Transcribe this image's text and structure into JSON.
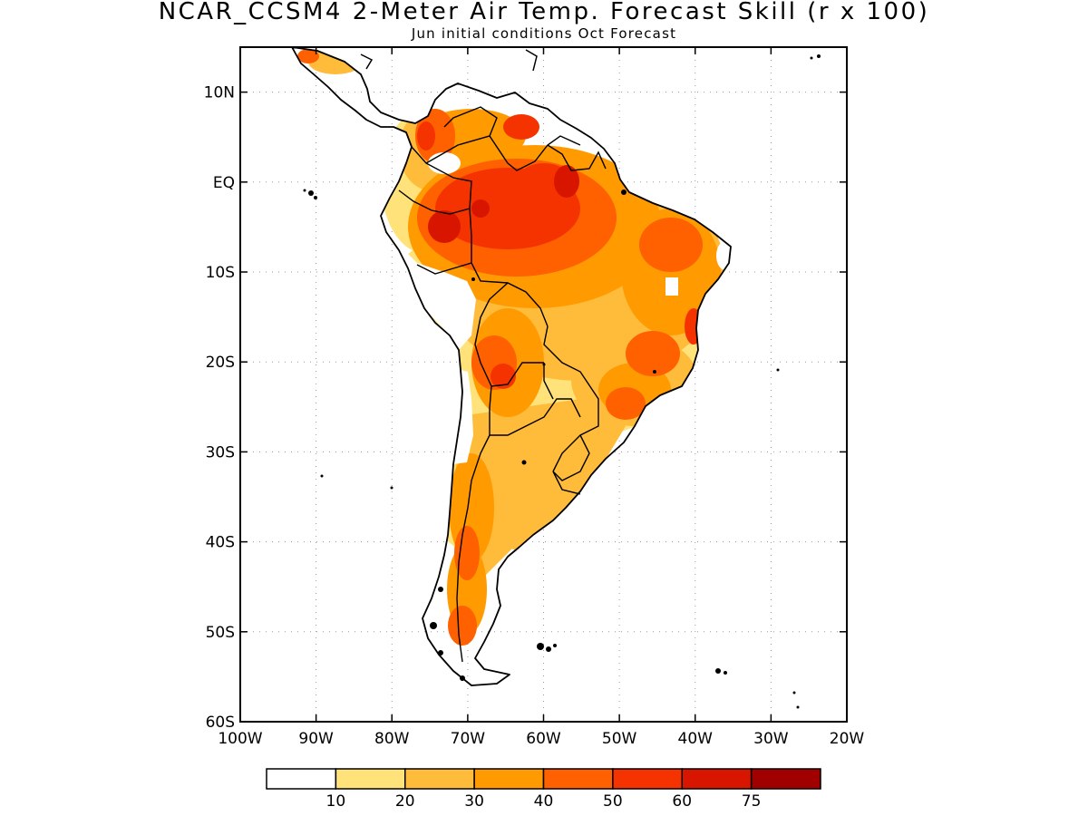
{
  "header": {
    "title": "NCAR_CCSM4 2-Meter Air Temp. Forecast Skill (r x 100)",
    "subtitle": "Jun initial conditions  Oct Forecast"
  },
  "map": {
    "region": "South America",
    "lon_range": [
      -100,
      -20
    ],
    "lat_range": [
      -60,
      15
    ],
    "lat_labels": [
      {
        "lat": 10,
        "label": "10N"
      },
      {
        "lat": 0,
        "label": "EQ"
      },
      {
        "lat": -10,
        "label": "10S"
      },
      {
        "lat": -20,
        "label": "20S"
      },
      {
        "lat": -30,
        "label": "30S"
      },
      {
        "lat": -40,
        "label": "40S"
      },
      {
        "lat": -50,
        "label": "50S"
      },
      {
        "lat": -60,
        "label": "60S"
      }
    ],
    "lon_labels": [
      {
        "lon": -100,
        "label": "100W"
      },
      {
        "lon": -90,
        "label": "90W"
      },
      {
        "lon": -80,
        "label": "80W"
      },
      {
        "lon": -70,
        "label": "70W"
      },
      {
        "lon": -60,
        "label": "60W"
      },
      {
        "lon": -50,
        "label": "50W"
      },
      {
        "lon": -40,
        "label": "40W"
      },
      {
        "lon": -30,
        "label": "30W"
      },
      {
        "lon": -20,
        "label": "20W"
      }
    ],
    "grid": "dotted"
  },
  "legend": {
    "labels": [
      "10",
      "20",
      "30",
      "40",
      "50",
      "60",
      "75"
    ],
    "colors": [
      "#ffffff",
      "#ffe37a",
      "#ffbb3a",
      "#ff9a00",
      "#ff6000",
      "#f53300",
      "#d81600",
      "#a00000"
    ]
  },
  "colors": {
    "c10": "#ffe37a",
    "c20": "#ffbb3a",
    "c30": "#ff9a00",
    "c40": "#ff6000",
    "c50": "#f53300",
    "c60": "#d81600",
    "c75": "#a00000"
  }
}
